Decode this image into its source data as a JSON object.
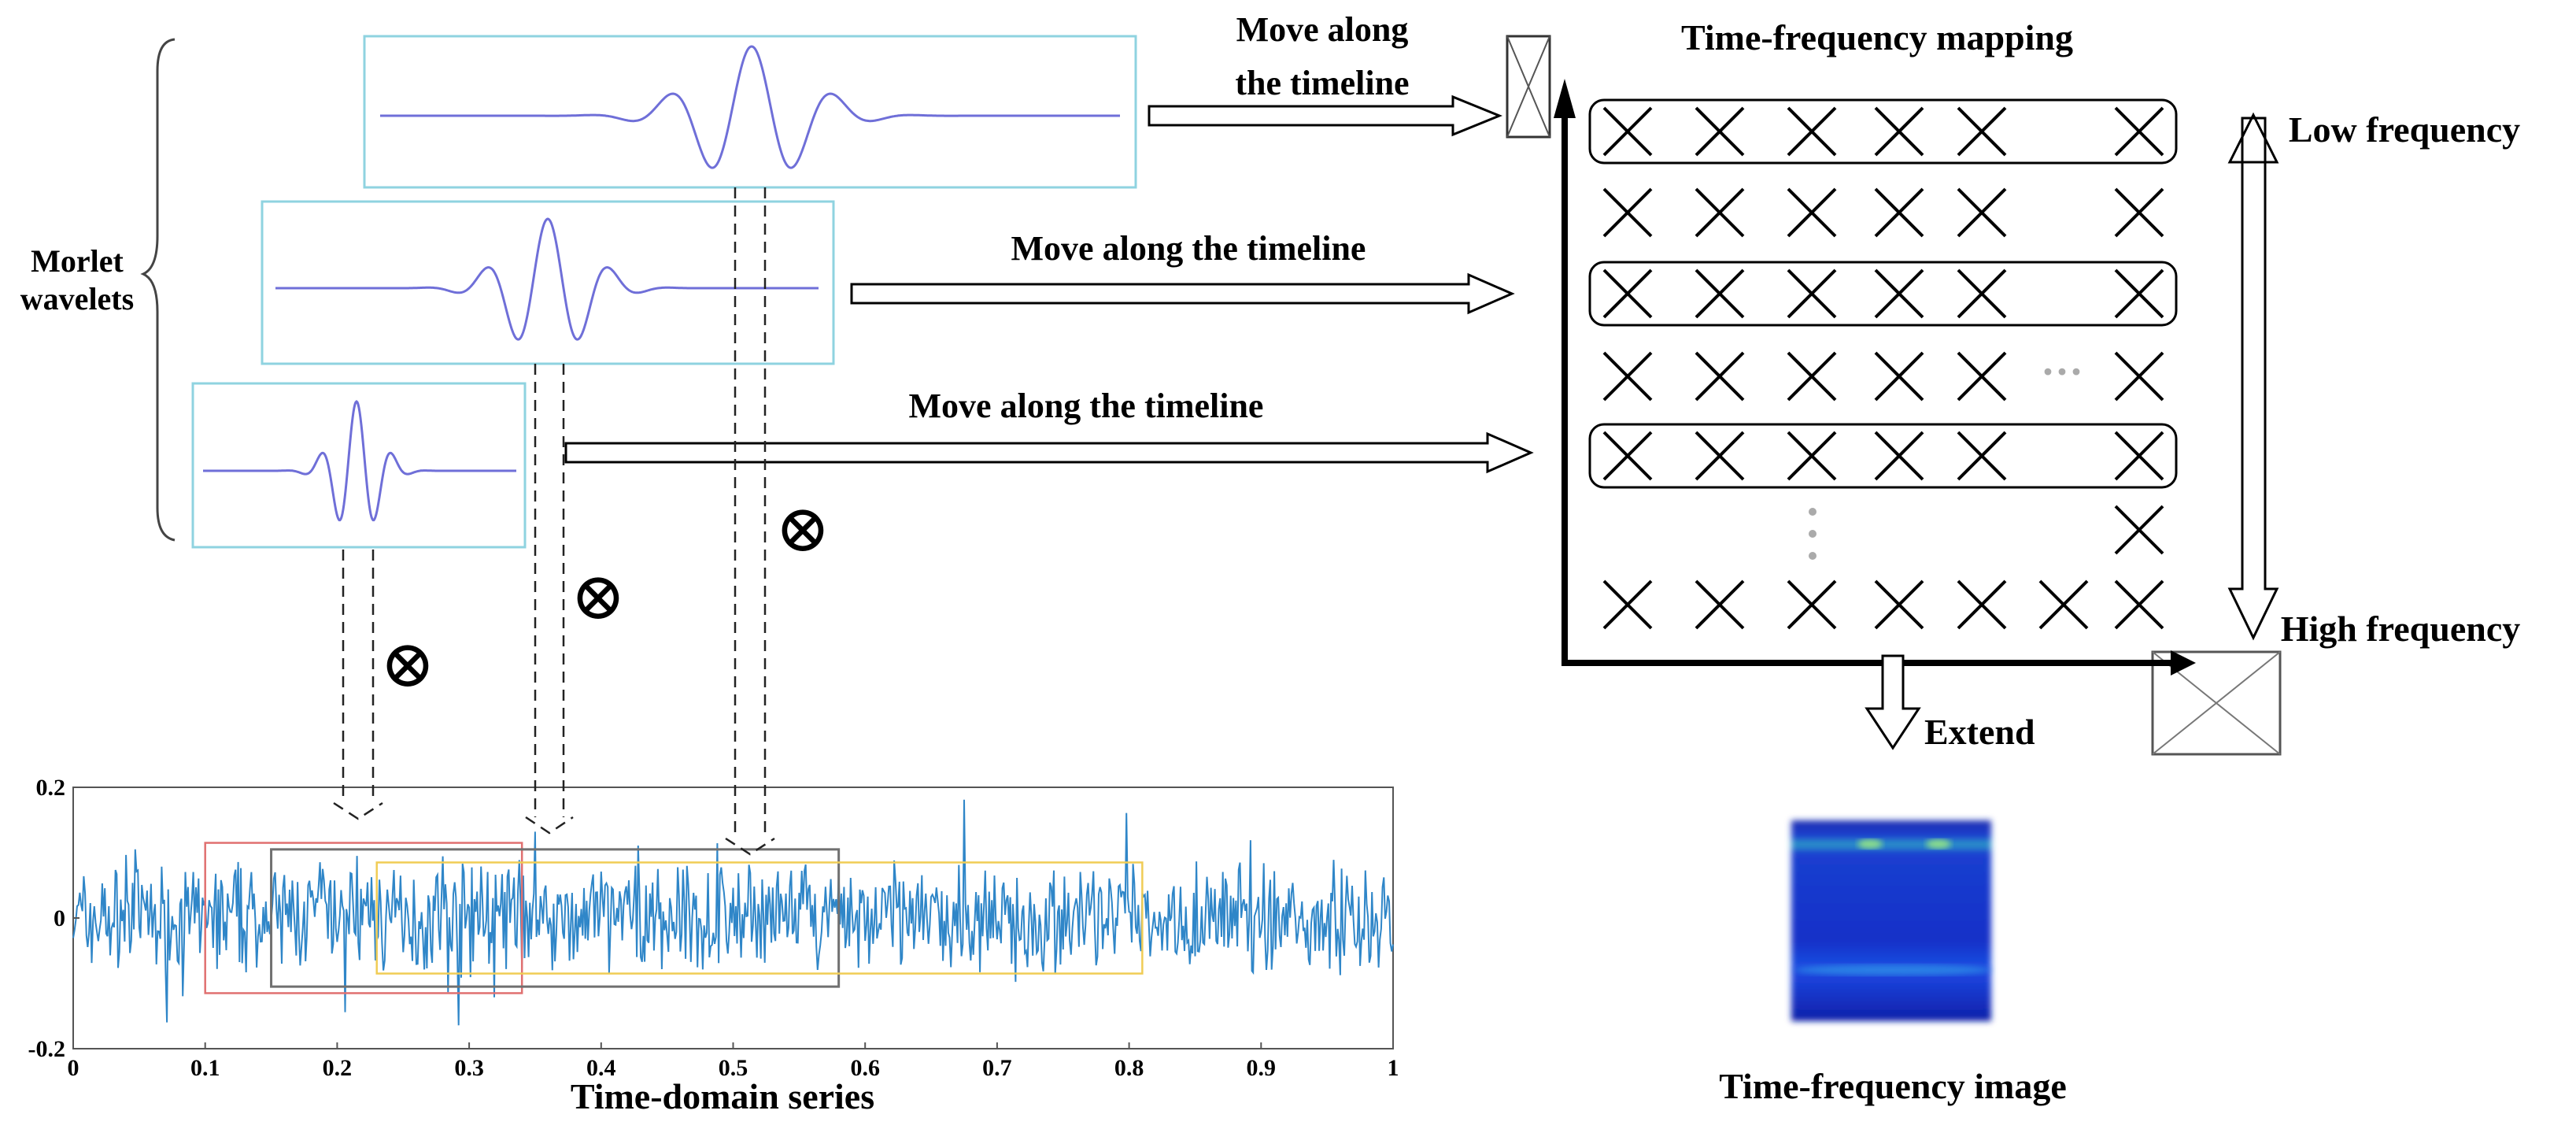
{
  "labels": {
    "morlet_line1": "Morlet",
    "morlet_line2": "wavelets",
    "move_top_line1": "Move along",
    "move_top_line2": "the timeline",
    "move_mid": "Move along the timeline",
    "move_low": "Move along the timeline",
    "tf_mapping": "Time-frequency mapping",
    "low_frequency": "Low frequency",
    "high_frequency": "High frequency",
    "extend": "Extend",
    "tf_image": "Time-frequency image",
    "time_domain": "Time-domain series",
    "multiply_symbol": "⊗",
    "ellipsis": "···"
  },
  "colors": {
    "wavelet_box": "#8fd3e0",
    "wavelet_line": "#6f6fd8",
    "signal": "#2f86c8",
    "window_red": "#e07070",
    "window_gray": "#707070",
    "window_yellow": "#f0cc55"
  },
  "chart_data": {
    "type": "line",
    "title": "",
    "xlabel": "Time-domain series",
    "ylabel": "",
    "xlim": [
      0,
      1
    ],
    "ylim": [
      -0.2,
      0.2
    ],
    "x_ticks": [
      "0",
      "0.1",
      "0.2",
      "0.3",
      "0.4",
      "0.5",
      "0.6",
      "0.7",
      "0.8",
      "0.9",
      "1"
    ],
    "y_ticks": [
      "0.2",
      "0",
      "-0.2"
    ],
    "windows": [
      {
        "color": "red",
        "x_start": 0.1,
        "x_end": 0.34
      },
      {
        "color": "gray",
        "x_start": 0.15,
        "x_end": 0.58
      },
      {
        "color": "yellow",
        "x_start": 0.23,
        "x_end": 0.81
      }
    ]
  },
  "tf_grid": {
    "rows": [
      {
        "cols": [
          1,
          1,
          1,
          1,
          1,
          0,
          1
        ],
        "highlight": true
      },
      {
        "cols": [
          1,
          1,
          1,
          1,
          1,
          0,
          1
        ],
        "highlight": false
      },
      {
        "cols": [
          1,
          1,
          1,
          1,
          1,
          0,
          1
        ],
        "highlight": true
      },
      {
        "cols": [
          1,
          1,
          1,
          1,
          1,
          0,
          1
        ],
        "highlight": false,
        "ellipsis": true
      },
      {
        "cols": [
          1,
          1,
          1,
          1,
          1,
          0,
          1
        ],
        "highlight": true
      },
      {
        "cols": [
          0,
          0,
          0,
          0,
          0,
          0,
          1
        ],
        "highlight": false,
        "vdots": true
      },
      {
        "cols": [
          1,
          1,
          1,
          1,
          1,
          1,
          1
        ],
        "highlight": false
      }
    ]
  }
}
